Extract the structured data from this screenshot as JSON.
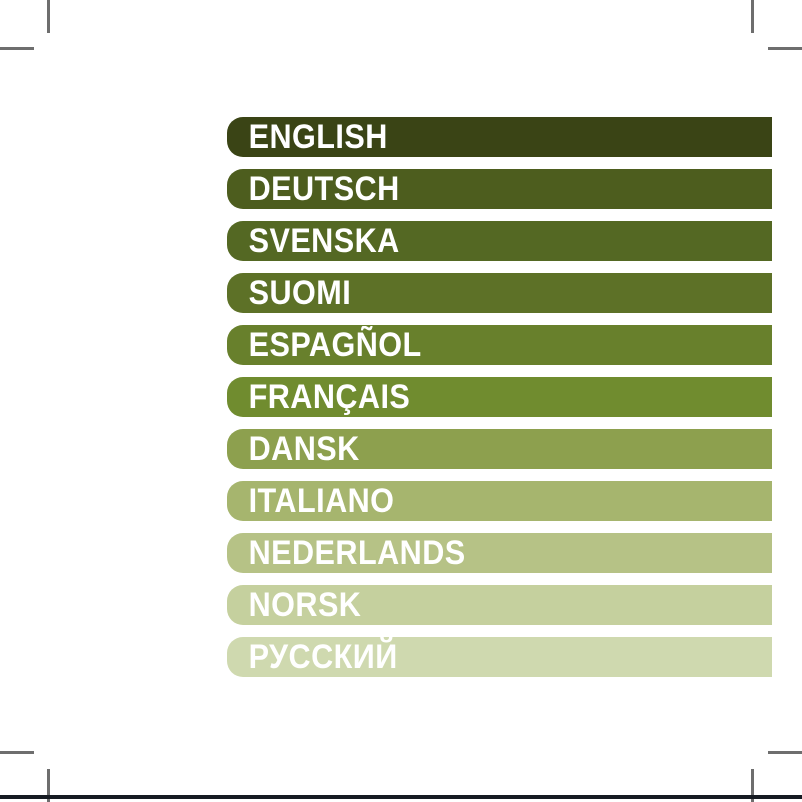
{
  "page": {
    "background": "#ffffff",
    "crop_mark_color": "#6e6e6e",
    "bottom_line_color": "#161b22"
  },
  "language_list": {
    "text_color": "#ffffff",
    "items": [
      {
        "label": "ENGLISH",
        "color": "#3a4415"
      },
      {
        "label": "DEUTSCH",
        "color": "#4d5d1e"
      },
      {
        "label": "SVENSKA",
        "color": "#546823"
      },
      {
        "label": "SUOMI",
        "color": "#5d7127"
      },
      {
        "label": "ESPAGÑOL",
        "color": "#68802c"
      },
      {
        "label": "FRANÇAIS",
        "color": "#708c2f"
      },
      {
        "label": "DANSK",
        "color": "#8da04e"
      },
      {
        "label": "ITALIANO",
        "color": "#a6b56e"
      },
      {
        "label": "NEDERLANDS",
        "color": "#b6c286"
      },
      {
        "label": "NORSK",
        "color": "#c5d09e"
      },
      {
        "label": "РУССКИЙ",
        "color": "#cfd9af"
      }
    ]
  }
}
